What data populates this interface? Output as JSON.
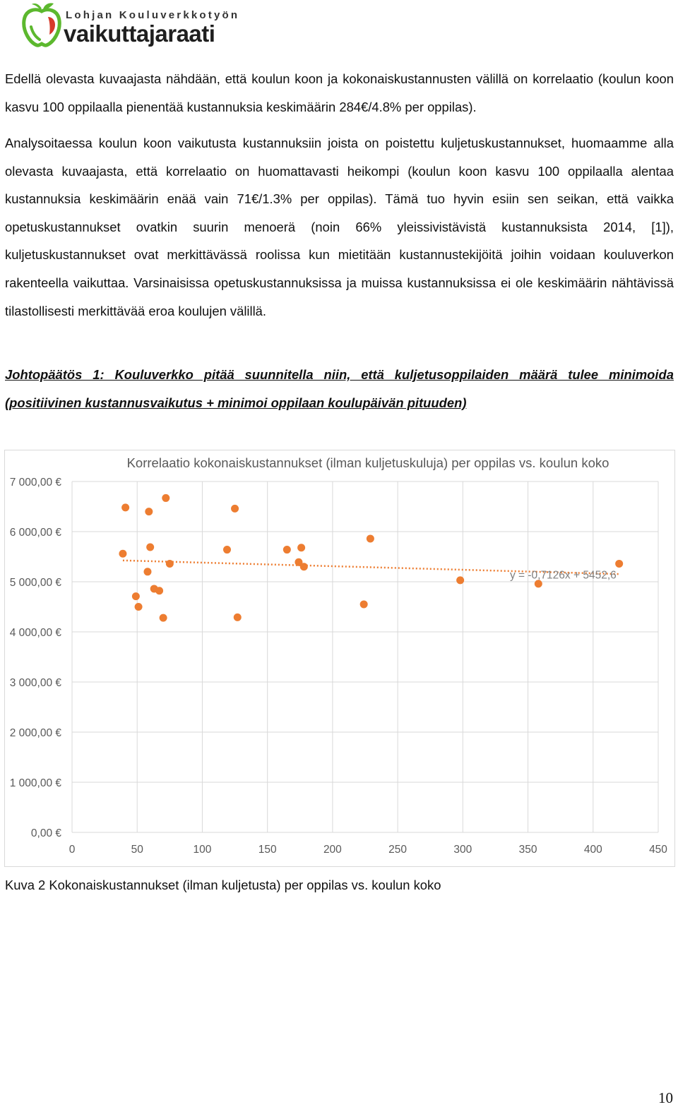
{
  "header": {
    "org_line": "Lohjan Kouluverkkotyön",
    "brand": "vaikuttajaraati",
    "logo_icon": "apple-icon",
    "colors": {
      "apple_green": "#5cb82e",
      "apple_red": "#d63a2a"
    }
  },
  "paragraphs": {
    "p1": "Edellä olevasta kuvaajasta nähdään, että koulun koon ja kokonaiskustannusten välillä on korrelaatio (koulun koon kasvu 100 oppilaalla pienentää kustannuksia keskimäärin 284€/4.8% per oppilas).",
    "p2": "Analysoitaessa koulun koon vaikutusta kustannuksiin joista on poistettu kuljetuskustannukset, huomaamme alla olevasta kuvaajasta, että korrelaatio on huomattavasti heikompi (koulun koon kasvu 100 oppilaalla alentaa kustannuksia keskimäärin enää vain 71€/1.3% per oppilas). Tämä tuo hyvin esiin sen seikan, että vaikka opetuskustannukset ovatkin suurin menoerä (noin 66% yleissivistävistä kustannuksista 2014, [1]), kuljetuskustannukset ovat merkittävässä roolissa kun mietitään kustannustekijöitä joihin voidaan kouluverkon rakenteella vaikuttaa. Varsinaisissa opetuskustannuksissa ja muissa kustannuksissa ei ole keskimäärin nähtävissä tilastollisesti merkittävää eroa koulujen välillä.",
    "p3": "Johtopäätös 1: Kouluverkko pitää suunnitella niin, että kuljetusoppilaiden määrä tulee minimoida (positiivinen kustannusvaikutus + minimoi oppilaan koulupäivän pituuden)"
  },
  "chart_data": {
    "type": "scatter",
    "title": "Korrelaatio kokonaiskustannukset (ilman kuljetuskuluja) per oppilas vs. koulun koko",
    "xlim": [
      0,
      450
    ],
    "ylim": [
      0,
      7000
    ],
    "x_ticks": [
      "0",
      "50",
      "100",
      "150",
      "200",
      "250",
      "300",
      "350",
      "400",
      "450"
    ],
    "y_ticks": [
      "0,00 €",
      "1 000,00 €",
      "2 000,00 €",
      "3 000,00 €",
      "4 000,00 €",
      "5 000,00 €",
      "6 000,00 €",
      "7 000,00 €"
    ],
    "grid": true,
    "point_color": "#ed7d31",
    "trendline": {
      "label": "y = -0,7126x + 5452,6",
      "slope": -0.7126,
      "intercept": 5452.6,
      "color": "#ed7d31"
    },
    "points": [
      {
        "x": 39,
        "y": 5560
      },
      {
        "x": 41,
        "y": 6480
      },
      {
        "x": 49,
        "y": 4710
      },
      {
        "x": 51,
        "y": 4500
      },
      {
        "x": 58,
        "y": 5200
      },
      {
        "x": 59,
        "y": 6400
      },
      {
        "x": 60,
        "y": 5690
      },
      {
        "x": 63,
        "y": 4860
      },
      {
        "x": 67,
        "y": 4820
      },
      {
        "x": 70,
        "y": 4280
      },
      {
        "x": 72,
        "y": 6670
      },
      {
        "x": 75,
        "y": 5360
      },
      {
        "x": 119,
        "y": 5640
      },
      {
        "x": 125,
        "y": 6460
      },
      {
        "x": 127,
        "y": 4290
      },
      {
        "x": 165,
        "y": 5640
      },
      {
        "x": 174,
        "y": 5390
      },
      {
        "x": 176,
        "y": 5680
      },
      {
        "x": 178,
        "y": 5300
      },
      {
        "x": 224,
        "y": 4550
      },
      {
        "x": 229,
        "y": 5860
      },
      {
        "x": 298,
        "y": 5030
      },
      {
        "x": 358,
        "y": 4960
      },
      {
        "x": 420,
        "y": 5360
      }
    ]
  },
  "caption": "Kuva 2 Kokonaiskustannukset (ilman kuljetusta) per oppilas vs. koulun koko",
  "page_number": "10"
}
